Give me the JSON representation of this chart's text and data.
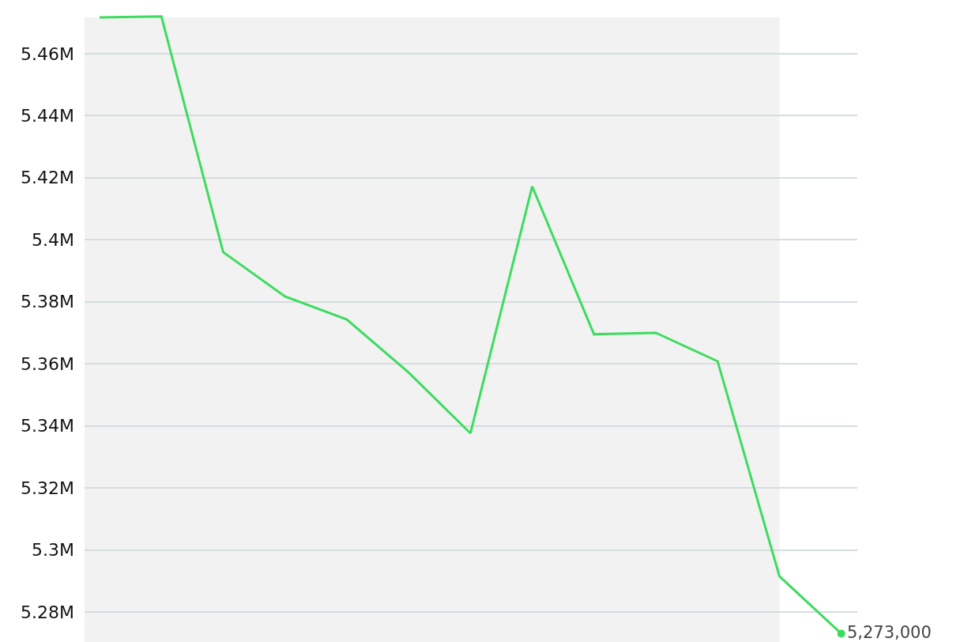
{
  "chart_data": {
    "type": "line",
    "categories": [
      null,
      null,
      null,
      null,
      null,
      null,
      null,
      null,
      null,
      null,
      null,
      null,
      null
    ],
    "series": [
      {
        "color": "#3ddc5f",
        "values": [
          5471700,
          5472000,
          5396000,
          5381700,
          5374300,
          5357200,
          5337600,
          5417200,
          5369500,
          5370000,
          5360800,
          5291500,
          5273000
        ],
        "value_labels": [
          null,
          null,
          null,
          null,
          null,
          null,
          null,
          null,
          null,
          null,
          null,
          null,
          "5,273,000"
        ]
      }
    ],
    "ylim": [
      5270300,
      5477300
    ],
    "yticks": [
      {
        "value": 5280000,
        "label": "5.28M"
      },
      {
        "value": 5300000,
        "label": "5.3M"
      },
      {
        "value": 5320000,
        "label": "5.32M"
      },
      {
        "value": 5340000,
        "label": "5.34M"
      },
      {
        "value": 5360000,
        "label": "5.36M"
      },
      {
        "value": 5380000,
        "label": "5.38M"
      },
      {
        "value": 5400000,
        "label": "5.4M"
      },
      {
        "value": 5420000,
        "label": "5.42M"
      },
      {
        "value": 5440000,
        "label": "5.44M"
      },
      {
        "value": 5460000,
        "label": "5.46M"
      }
    ],
    "grid": "y",
    "tick_labels": "y"
  }
}
